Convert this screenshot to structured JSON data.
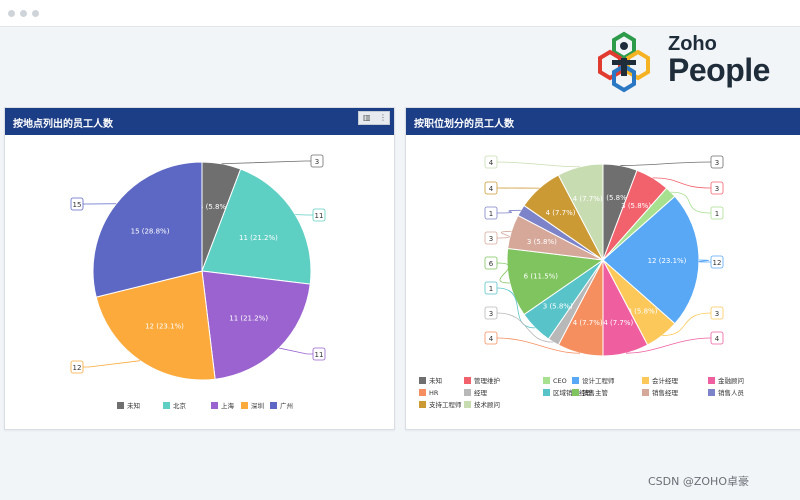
{
  "watermark": "CSDN @ZOHO卓豪",
  "logo": {
    "line1": "Zoho",
    "line2": "People"
  },
  "chart_data": [
    {
      "type": "pie",
      "title": "按地点列出的员工人数",
      "series": [
        {
          "name": "未知",
          "value": 3,
          "label": "3 (5.8%)",
          "color": "#6f6f6f"
        },
        {
          "name": "北京",
          "value": 11,
          "label": "11 (21.2%)",
          "color": "#5ecfc3"
        },
        {
          "name": "上海",
          "value": 11,
          "label": "11 (21.2%)",
          "color": "#9a63cf"
        },
        {
          "name": "深圳",
          "value": 12,
          "label": "12 (23.1%)",
          "color": "#fbaa3b"
        },
        {
          "name": "广州",
          "value": 15,
          "label": "15 (28.8%)",
          "color": "#5d68c5"
        }
      ],
      "legend": [
        "未知",
        "北京",
        "上海",
        "深圳",
        "广州"
      ],
      "legend_position": "bottom"
    },
    {
      "type": "pie",
      "title": "按职位划分的员工人数",
      "series": [
        {
          "name": "未知",
          "value": 3,
          "label": "3 (5.8%)",
          "color": "#6f6f6f"
        },
        {
          "name": "管理维护",
          "value": 3,
          "label": "3 (5.8%)",
          "color": "#f2626c"
        },
        {
          "name": "CEO",
          "value": 1,
          "label": "",
          "color": "#a7e08f"
        },
        {
          "name": "设计工程师",
          "value": 12,
          "label": "12 (23.1%)",
          "color": "#58a8f5"
        },
        {
          "name": "会计经理",
          "value": 3,
          "label": "3 (5.8%)",
          "color": "#fcc85a"
        },
        {
          "name": "金融顾问",
          "value": 4,
          "label": "4 (7.7%)",
          "color": "#ef5fa0"
        },
        {
          "name": "HR",
          "value": 4,
          "label": "4 (7.7%)",
          "color": "#f58f5f"
        },
        {
          "name": "经理",
          "value": 1,
          "label": "",
          "color": "#b8b8b8"
        },
        {
          "name": "区域销售经理",
          "value": 3,
          "label": "3 (5.8%)",
          "color": "#58c3c8"
        },
        {
          "name": "销售主管",
          "value": 6,
          "label": "6 (11.5%)",
          "color": "#7fc45e"
        },
        {
          "name": "销售经理",
          "value": 3,
          "label": "3 (5.8%)",
          "color": "#d5a89a"
        },
        {
          "name": "销售人员",
          "value": 1,
          "label": "",
          "color": "#7d83c8"
        },
        {
          "name": "支持工程师",
          "value": 4,
          "label": "4 (7.7%)",
          "color": "#cc9a35"
        },
        {
          "name": "技术顾问",
          "value": 4,
          "label": "4 (7.7%)",
          "color": "#c8dcb2"
        }
      ],
      "callouts_right": [
        "3",
        "3",
        "1",
        "12",
        "3",
        "4"
      ],
      "callouts_left": [
        "4",
        "4",
        "1",
        "3",
        "6",
        "1",
        "3",
        "4"
      ],
      "legend": [
        "未知",
        "管理维护",
        "CEO",
        "设计工程师",
        "会计经理",
        "金融顾问",
        "HR",
        "经理",
        "区域销售经理",
        "销售主管",
        "销售经理",
        "销售人员",
        "支持工程师",
        "技术顾问"
      ],
      "legend_position": "bottom"
    }
  ],
  "chart1_callouts": [
    "3",
    "11",
    "11",
    "12",
    "15"
  ]
}
